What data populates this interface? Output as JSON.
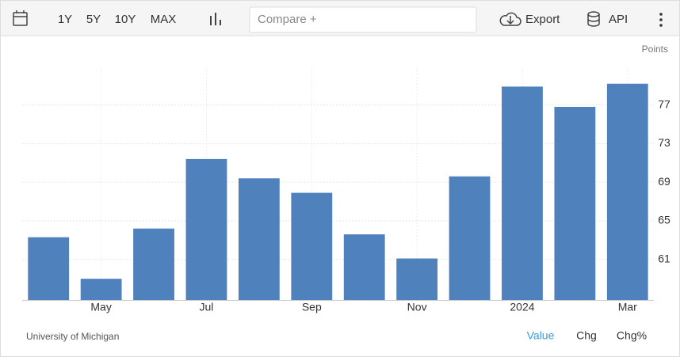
{
  "toolbar": {
    "ranges": [
      "1Y",
      "5Y",
      "10Y",
      "MAX"
    ],
    "compare": "Compare +",
    "export": "Export",
    "api": "API"
  },
  "unit_label": "Points",
  "source": "University of Michigan",
  "tabs": [
    "Value",
    "Chg",
    "Chg%"
  ],
  "chart_data": {
    "type": "bar",
    "categories": [
      null,
      "May",
      null,
      "Jul",
      null,
      "Sep",
      null,
      "Nov",
      null,
      "2024",
      null,
      "Mar"
    ],
    "values": [
      63.3,
      59.0,
      64.2,
      71.4,
      69.4,
      67.9,
      63.6,
      61.1,
      69.6,
      78.9,
      76.8,
      79.2
    ],
    "color": "#4f81bd",
    "ylim": [
      56.8,
      80.9
    ],
    "yticks": [
      61,
      65,
      69,
      73,
      77
    ],
    "grid": true,
    "y_axis_side": "right"
  }
}
